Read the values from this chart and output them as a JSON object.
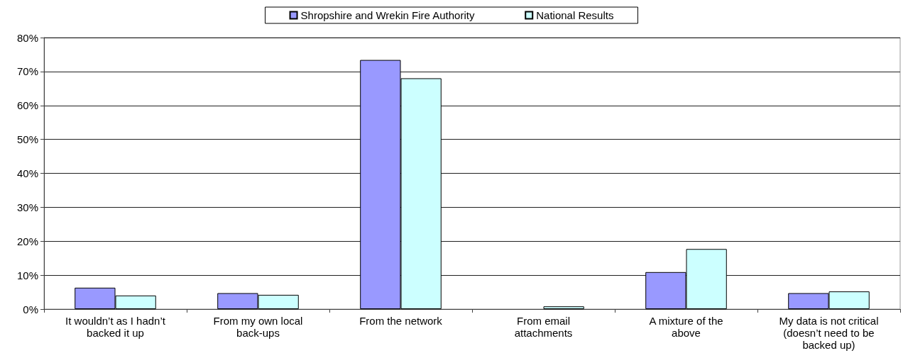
{
  "chart_data": {
    "type": "bar",
    "categories": [
      "It wouldn’t as I hadn’t\nbacked it up",
      "From my own local\nback-ups",
      "From the network",
      "From email\nattachments",
      "A mixture of the\nabove",
      "My data is not critical\n(doesn’t need to be\nbacked up)"
    ],
    "series": [
      {
        "name": "Shropshire and Wrekin Fire Authority",
        "color": "#9999ff",
        "values": [
          6.3,
          4.7,
          73.4,
          null,
          10.9,
          4.7
        ]
      },
      {
        "name": "National Results",
        "color": "#ccffff",
        "values": [
          4.0,
          4.2,
          68.0,
          0.8,
          17.7,
          5.2
        ]
      }
    ],
    "ylim": [
      0,
      80
    ],
    "yticks": [
      {
        "value": 0,
        "label": "0%"
      },
      {
        "value": 10,
        "label": "10%"
      },
      {
        "value": 20,
        "label": "20%"
      },
      {
        "value": 30,
        "label": "30%"
      },
      {
        "value": 40,
        "label": "40%"
      },
      {
        "value": 50,
        "label": "50%"
      },
      {
        "value": 60,
        "label": "60%"
      },
      {
        "value": 70,
        "label": "70%"
      },
      {
        "value": 80,
        "label": "80%"
      }
    ],
    "grid": "y",
    "legend": "top"
  }
}
